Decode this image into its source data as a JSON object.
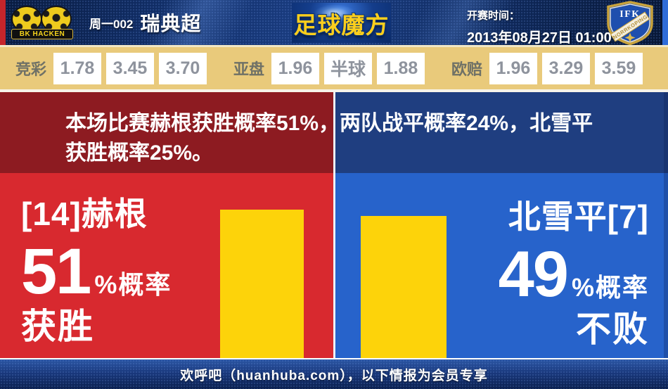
{
  "header": {
    "home_team_badge": {
      "label": "BK HACKEN"
    },
    "match_number": "周一002",
    "league_name": "瑞典超",
    "site_logo_text": "足球魔方",
    "kickoff_label": "开赛时间：",
    "kickoff_time": "2013年08月27日 01:00",
    "away_team_badge": {
      "initials": "IFK",
      "banner": "NORRKOPING"
    }
  },
  "odds_bar": {
    "groups": [
      {
        "label": "竞彩",
        "values": [
          "1.78",
          "3.45",
          "3.70"
        ]
      },
      {
        "label": "亚盘",
        "values": [
          "1.96",
          "半球",
          "1.88"
        ]
      },
      {
        "label": "欧赔",
        "values": [
          "1.96",
          "3.29",
          "3.59"
        ]
      }
    ]
  },
  "prediction": {
    "summary_line1": "本场比赛赫根获胜概率51%，两队战平概率24%，北雪平",
    "summary_line2": "获胜概率25%。",
    "home": {
      "name": "[14]赫根",
      "percent": "51",
      "suffix": "%概率",
      "outcome": "获胜"
    },
    "away": {
      "name": "北雪平[7]",
      "percent": "49",
      "suffix": "%概率",
      "outcome": "不败"
    }
  },
  "footer": {
    "text": "欢呼吧（huanhuba.com），以下情报为会员专享"
  },
  "colors": {
    "home_accent": "#d8292f",
    "home_accent_dark": "#8d1b21",
    "away_accent": "#2763cb",
    "away_accent_dark": "#1f3e80",
    "bar_yellow": "#fdd30a",
    "odds_background": "#e9ca7b"
  },
  "chart_data": {
    "type": "bar",
    "categories": [
      "赫根获胜",
      "北雪平不败"
    ],
    "values": [
      51,
      49
    ],
    "ylim": [
      0,
      100
    ],
    "probabilities": {
      "home_win": 51,
      "draw": 24,
      "away_win": 25,
      "away_unbeaten": 49
    }
  }
}
